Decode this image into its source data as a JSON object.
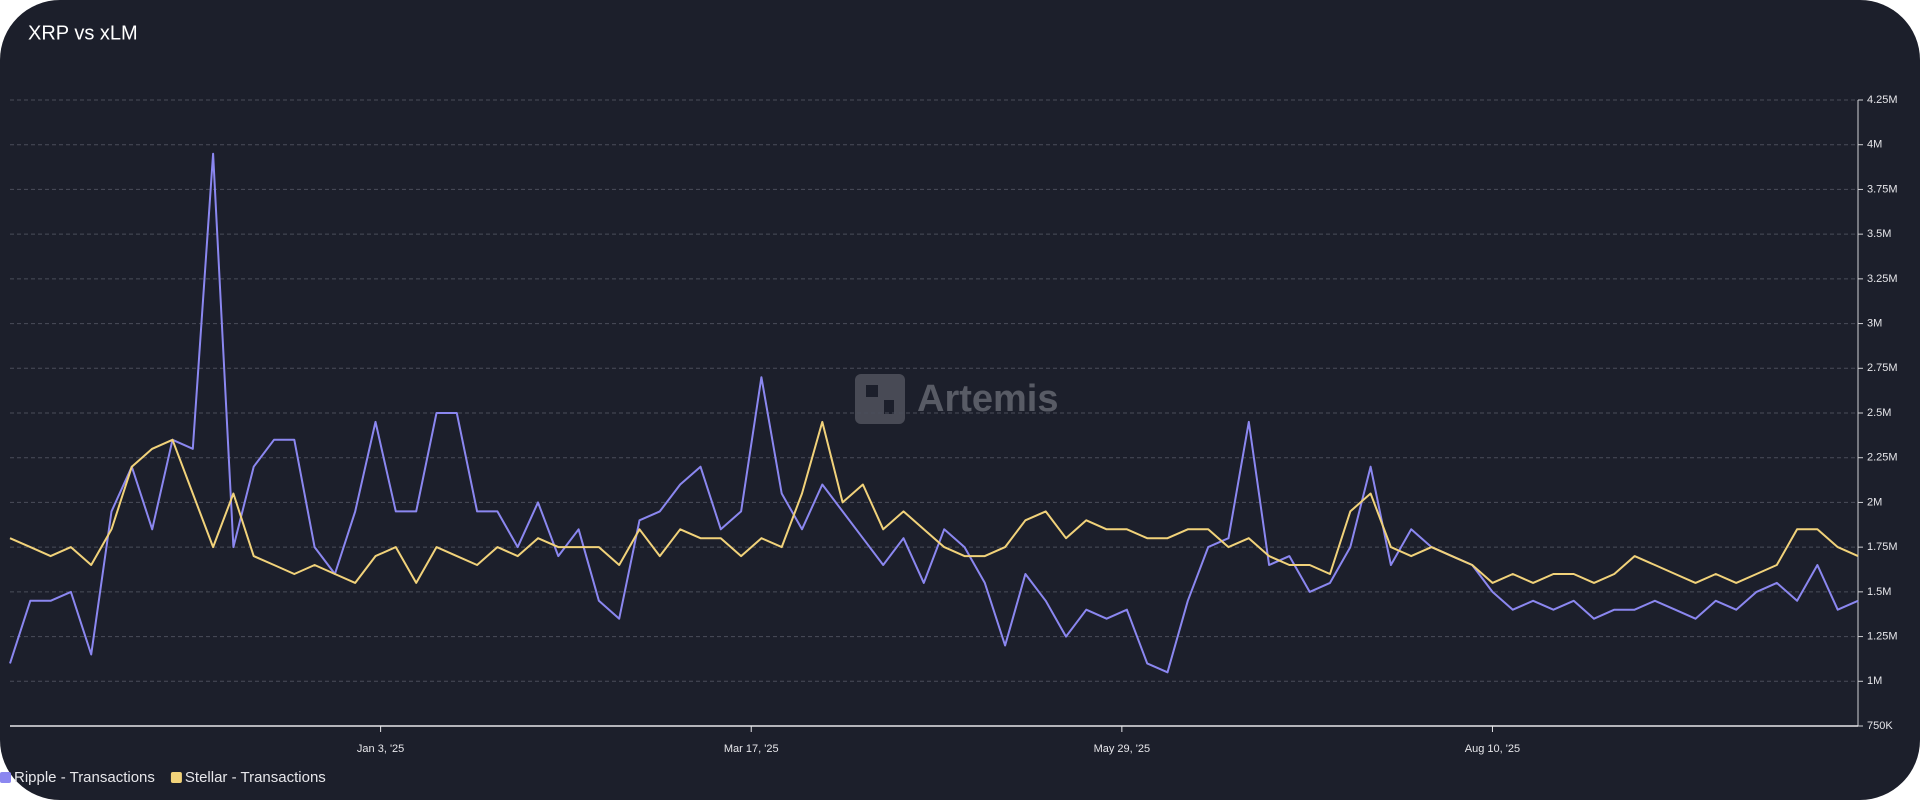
{
  "chart_data": {
    "type": "line",
    "title": "XRP vs xLM",
    "watermark": "Artemis",
    "x": [
      "2024-10-22",
      "2024-10-26",
      "2024-10-30",
      "2024-11-03",
      "2024-11-07",
      "2024-11-11",
      "2024-11-15",
      "2024-11-19",
      "2024-11-23",
      "2024-11-27",
      "2024-12-01",
      "2024-12-05",
      "2024-12-09",
      "2024-12-13",
      "2024-12-17",
      "2024-12-21",
      "2024-12-25",
      "2024-12-29",
      "2025-01-02",
      "2025-01-06",
      "2025-01-10",
      "2025-01-14",
      "2025-01-18",
      "2025-01-22",
      "2025-01-26",
      "2025-01-30",
      "2025-02-03",
      "2025-02-07",
      "2025-02-11",
      "2025-02-15",
      "2025-02-19",
      "2025-02-23",
      "2025-02-27",
      "2025-03-03",
      "2025-03-07",
      "2025-03-11",
      "2025-03-15",
      "2025-03-19",
      "2025-03-23",
      "2025-03-27",
      "2025-03-31",
      "2025-04-04",
      "2025-04-08",
      "2025-04-12",
      "2025-04-16",
      "2025-04-20",
      "2025-04-24",
      "2025-04-28",
      "2025-05-02",
      "2025-05-06",
      "2025-05-10",
      "2025-05-14",
      "2025-05-18",
      "2025-05-22",
      "2025-05-26",
      "2025-05-30",
      "2025-06-03",
      "2025-06-07",
      "2025-06-11",
      "2025-06-15",
      "2025-06-19",
      "2025-06-23",
      "2025-06-27",
      "2025-07-01",
      "2025-07-05",
      "2025-07-09",
      "2025-07-13",
      "2025-07-17",
      "2025-07-21",
      "2025-07-25",
      "2025-07-29",
      "2025-08-02",
      "2025-08-06",
      "2025-08-10",
      "2025-08-14",
      "2025-08-18",
      "2025-08-22",
      "2025-08-26",
      "2025-08-30",
      "2025-09-03",
      "2025-09-07",
      "2025-09-11",
      "2025-09-15",
      "2025-09-19",
      "2025-09-23",
      "2025-09-27",
      "2025-10-01",
      "2025-10-05",
      "2025-10-09",
      "2025-10-13",
      "2025-10-17",
      "2025-10-21"
    ],
    "xlim": [
      "2024-10-22",
      "2025-10-21"
    ],
    "xticks": [
      {
        "value": "2025-01-03",
        "label": "Jan 3, '25"
      },
      {
        "value": "2025-03-17",
        "label": "Mar 17, '25"
      },
      {
        "value": "2025-05-29",
        "label": "May 29, '25"
      },
      {
        "value": "2025-08-10",
        "label": "Aug 10, '25"
      }
    ],
    "ylim": [
      750000,
      4250000
    ],
    "yticks": [
      {
        "value": 750000,
        "label": "750K"
      },
      {
        "value": 1000000,
        "label": "1M"
      },
      {
        "value": 1250000,
        "label": "1.25M"
      },
      {
        "value": 1500000,
        "label": "1.5M"
      },
      {
        "value": 1750000,
        "label": "1.75M"
      },
      {
        "value": 2000000,
        "label": "2M"
      },
      {
        "value": 2250000,
        "label": "2.25M"
      },
      {
        "value": 2500000,
        "label": "2.5M"
      },
      {
        "value": 2750000,
        "label": "2.75M"
      },
      {
        "value": 3000000,
        "label": "3M"
      },
      {
        "value": 3250000,
        "label": "3.25M"
      },
      {
        "value": 3500000,
        "label": "3.5M"
      },
      {
        "value": 3750000,
        "label": "3.75M"
      },
      {
        "value": 4000000,
        "label": "4M"
      },
      {
        "value": 4250000,
        "label": "4.25M"
      }
    ],
    "grid": true,
    "series": [
      {
        "name": "Ripple - Transactions",
        "color": "#8b87f0",
        "values": [
          1100000,
          1450000,
          1450000,
          1500000,
          1150000,
          1950000,
          2200000,
          1850000,
          2350000,
          2300000,
          3950000,
          1750000,
          2200000,
          2350000,
          2350000,
          1750000,
          1600000,
          1950000,
          2450000,
          1950000,
          1950000,
          2500000,
          2500000,
          1950000,
          1950000,
          1750000,
          2000000,
          1700000,
          1850000,
          1450000,
          1350000,
          1900000,
          1950000,
          2100000,
          2200000,
          1850000,
          1950000,
          2700000,
          2050000,
          1850000,
          2100000,
          1950000,
          1800000,
          1650000,
          1800000,
          1550000,
          1850000,
          1750000,
          1550000,
          1200000,
          1600000,
          1450000,
          1250000,
          1400000,
          1350000,
          1400000,
          1100000,
          1050000,
          1450000,
          1750000,
          1800000,
          2450000,
          1650000,
          1700000,
          1500000,
          1550000,
          1750000,
          2200000,
          1650000,
          1850000,
          1750000,
          1700000,
          1650000,
          1500000,
          1400000,
          1450000,
          1400000,
          1450000,
          1350000,
          1400000,
          1400000,
          1450000,
          1400000,
          1350000,
          1450000,
          1400000,
          1500000,
          1550000,
          1450000,
          1650000,
          1400000,
          1450000
        ]
      },
      {
        "name": "Stellar - Transactions",
        "color": "#f1d27a",
        "values": [
          1800000,
          1750000,
          1700000,
          1750000,
          1650000,
          1850000,
          2200000,
          2300000,
          2350000,
          2050000,
          1750000,
          2050000,
          1700000,
          1650000,
          1600000,
          1650000,
          1600000,
          1550000,
          1700000,
          1750000,
          1550000,
          1750000,
          1700000,
          1650000,
          1750000,
          1700000,
          1800000,
          1750000,
          1750000,
          1750000,
          1650000,
          1850000,
          1700000,
          1850000,
          1800000,
          1800000,
          1700000,
          1800000,
          1750000,
          2050000,
          2450000,
          2000000,
          2100000,
          1850000,
          1950000,
          1850000,
          1750000,
          1700000,
          1700000,
          1750000,
          1900000,
          1950000,
          1800000,
          1900000,
          1850000,
          1850000,
          1800000,
          1800000,
          1850000,
          1850000,
          1750000,
          1800000,
          1700000,
          1650000,
          1650000,
          1600000,
          1950000,
          2050000,
          1750000,
          1700000,
          1750000,
          1700000,
          1650000,
          1550000,
          1600000,
          1550000,
          1600000,
          1600000,
          1550000,
          1600000,
          1700000,
          1650000,
          1600000,
          1550000,
          1600000,
          1550000,
          1600000,
          1650000,
          1850000,
          1850000,
          1750000,
          1700000
        ]
      }
    ]
  }
}
